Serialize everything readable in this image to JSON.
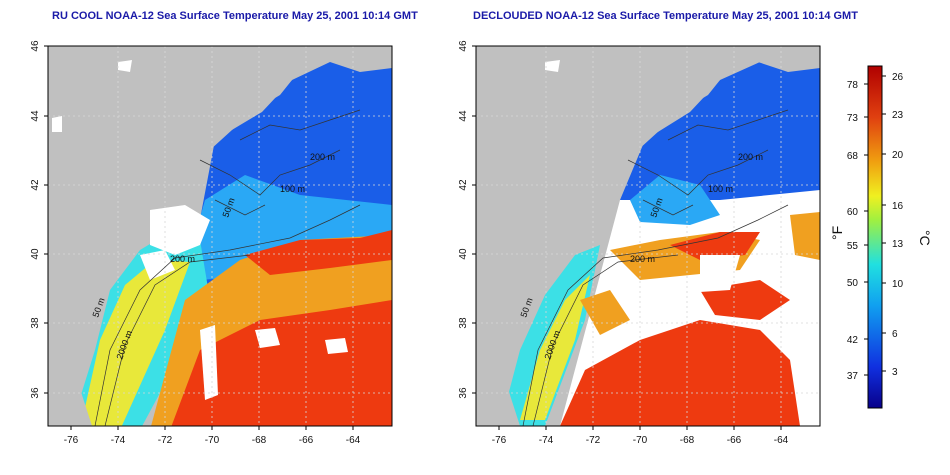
{
  "panels": [
    {
      "title": "RU COOL NOAA-12 Sea Surface Temperature May 25, 2001 10:14 GMT",
      "contours": [
        "200 m",
        "100 m",
        "50 m",
        "200 m",
        "50 m",
        "2000 m"
      ]
    },
    {
      "title": "DECLOUDED NOAA-12 Sea Surface Temperature May 25, 2001 10:14 GMT",
      "contours": [
        "200 m",
        "100 m",
        "50 m",
        "200 m",
        "50 m",
        "2000 m"
      ]
    }
  ],
  "axes": {
    "x_ticks": [
      "-76",
      "-74",
      "-72",
      "-70",
      "-68",
      "-66",
      "-64"
    ],
    "y_ticks": [
      "36",
      "38",
      "40",
      "42",
      "44",
      "46"
    ]
  },
  "colorbar": {
    "f_label": "°F",
    "c_label": "°C",
    "f_ticks": [
      "78",
      "73",
      "68",
      "60",
      "55",
      "50",
      "42",
      "37"
    ],
    "c_ticks": [
      "26",
      "23",
      "20",
      "16",
      "13",
      "10",
      "6",
      "3"
    ],
    "colors": [
      "#08008a",
      "#1030e0",
      "#10a0f0",
      "#20e0e0",
      "#a0f040",
      "#f0f020",
      "#f0a010",
      "#e04010",
      "#b00000"
    ]
  },
  "map_colors": {
    "land": "#c0c0c0",
    "cloud": "#ffffff",
    "cold": "#1a5ee8",
    "cool": "#2aa8f5",
    "mild": "#3ce0e6",
    "warm": "#f0a020",
    "hot": "#ee3a10"
  }
}
